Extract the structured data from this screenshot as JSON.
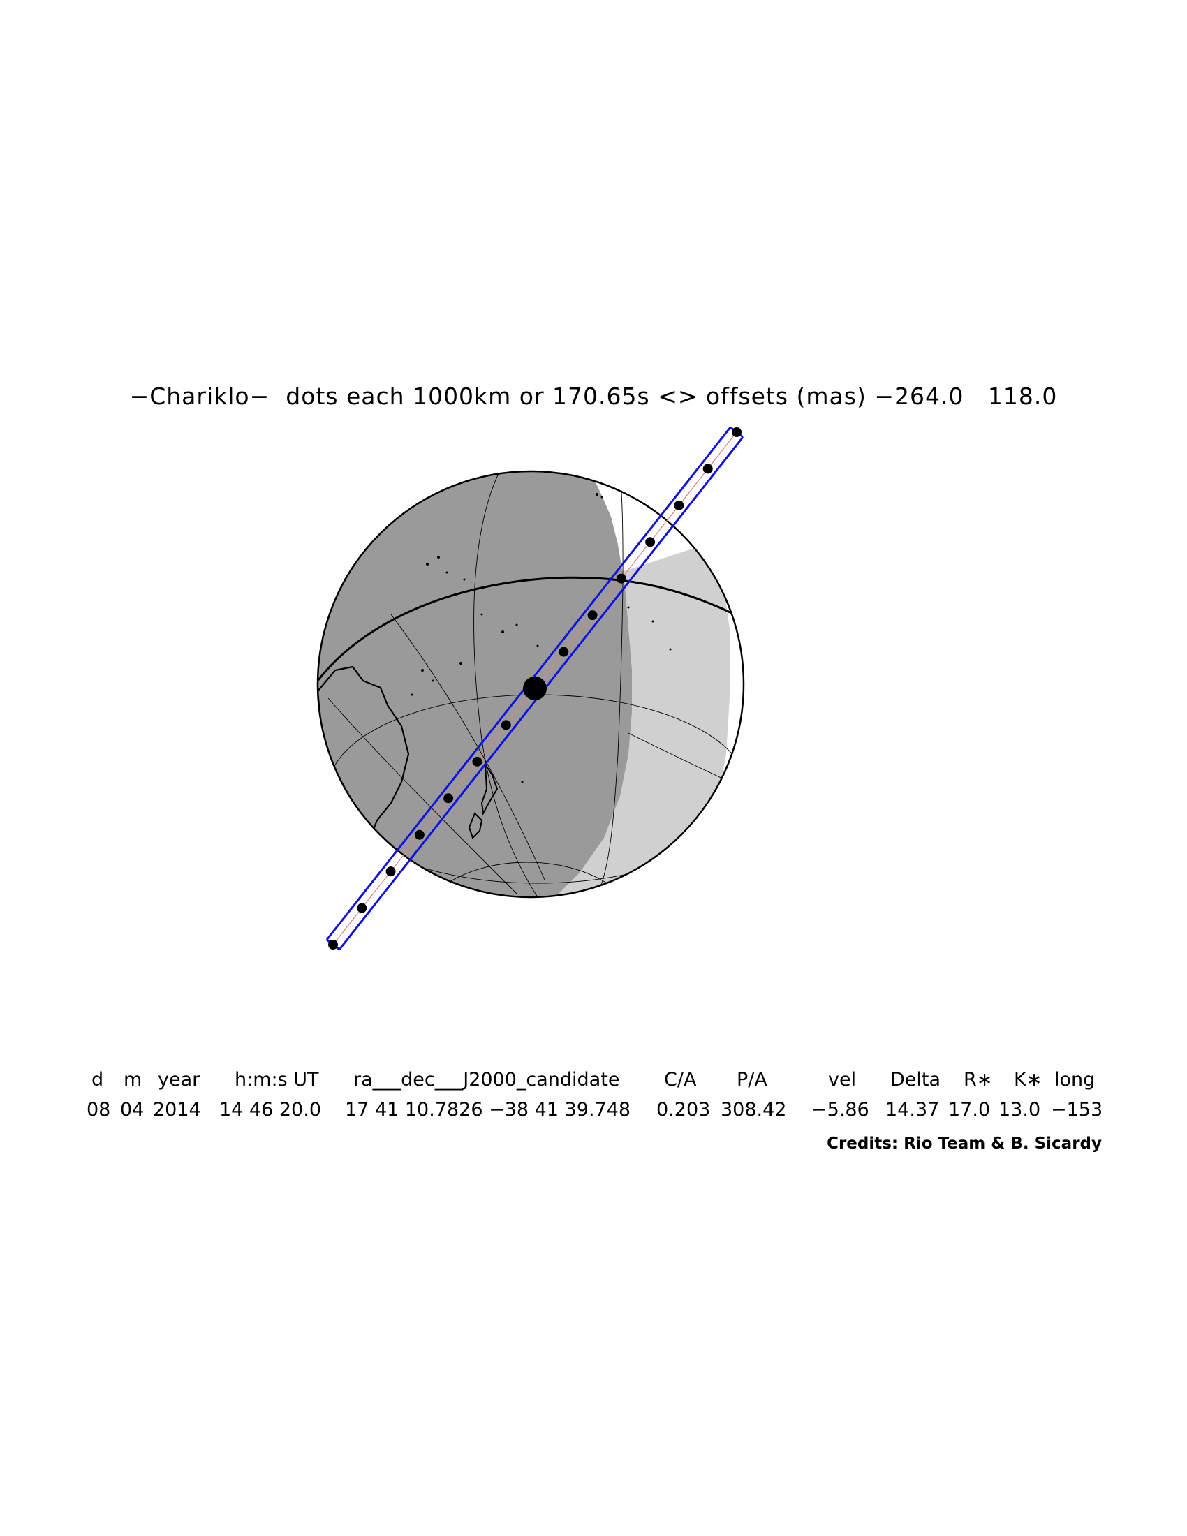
{
  "title": "−Chariklo−  dots each 1000km or 170.65s <> offsets (mas) −264.0   118.0",
  "table": {
    "headers": [
      "d",
      "m",
      "year",
      "h:m:s UT",
      "ra___dec___J2000_candidate",
      "C/A",
      "P/A",
      "vel",
      "Delta",
      "R∗",
      "K∗",
      "long"
    ],
    "values": [
      "08",
      "04",
      "2014",
      "14 46 20.0",
      "17 41 10.7826 −38 41 39.748",
      "0.203",
      "308.42",
      "−5.86",
      "14.37",
      "17.0",
      "13.0",
      "−153"
    ]
  },
  "credits": "Credits: Rio Team & B. Sicardy",
  "colors": {
    "night": "#9a9a9a",
    "twilight": "#d0d0d0",
    "day": "#ffffff",
    "shadow_path": "#1010e0",
    "shadow_center_line": "#e08080",
    "dots": "#000000"
  },
  "occultation": {
    "dot_spacing_km": 1000,
    "dot_spacing_s": 170.65,
    "offset_ra_mas": -264.0,
    "offset_dec_mas": 118.0
  }
}
